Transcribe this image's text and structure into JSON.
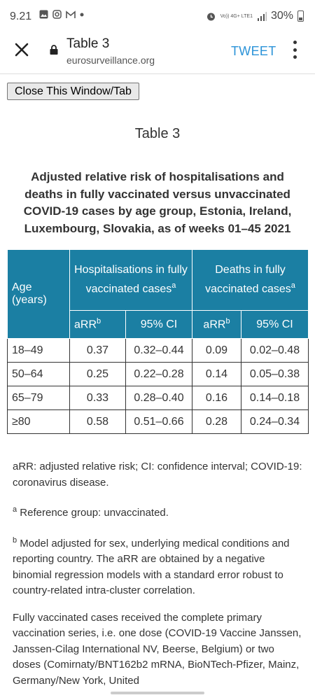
{
  "status_bar": {
    "time": "9.21",
    "left_icons": [
      "image-icon",
      "instagram-icon",
      "gmail-icon",
      "dot-icon"
    ],
    "network_label": "Vo)) 4G+ LTE1",
    "battery": "30%"
  },
  "toolbar": {
    "title": "Table 3",
    "url": "eurosurveillance.org",
    "tweet_label": "TWEET"
  },
  "page": {
    "close_button": "Close This Window/Tab",
    "table_heading": "Table 3",
    "caption": "Adjusted relative risk of hospitalisations and deaths in fully vaccinated versus unvaccinated COVID-19 cases by age group, Estonia, Ireland, Luxembourg, Slovakia, as of weeks 01–45 2021"
  },
  "table": {
    "age_header": "Age (years)",
    "group1_header": "Hospitalisations in fully vaccinated cases",
    "group2_header": "Deaths in fully vaccinated cases",
    "sup_a": "a",
    "sup_b": "b",
    "sub_arr": "aRR",
    "sub_ci": "95% CI",
    "rows": [
      {
        "age": "18–49",
        "h_arr": "0.37",
        "h_ci": "0.32–0.44",
        "d_arr": "0.09",
        "d_ci": "0.02–0.48"
      },
      {
        "age": "50–64",
        "h_arr": "0.25",
        "h_ci": "0.22–0.28",
        "d_arr": "0.14",
        "d_ci": "0.05–0.38"
      },
      {
        "age": "65–79",
        "h_arr": "0.33",
        "h_ci": "0.28–0.40",
        "d_arr": "0.16",
        "d_ci": "0.14–0.18"
      },
      {
        "age": "≥80",
        "h_arr": "0.58",
        "h_ci": "0.51–0.66",
        "d_arr": "0.28",
        "d_ci": "0.24–0.34"
      }
    ]
  },
  "notes": {
    "abbrev": "aRR: adjusted relative risk; CI: confidence interval; COVID-19: coronavirus disease.",
    "note_a_mark": "a",
    "note_a": " Reference group: unvaccinated.",
    "note_b_mark": "b",
    "note_b": " Model adjusted for sex, underlying medical conditions and reporting country. The aRR are obtained by a negative binomial regression models with a standard error robust to country-related intra-cluster correlation.",
    "fully_vaccinated": "Fully vaccinated cases received the complete primary vaccination series, i.e. one dose (COVID-19 Vaccine Janssen, Janssen-Cilag International NV, Beerse, Belgium) or two doses (Comirnaty/BNT162b2 mRNA, BioNTech-Pfizer, Mainz, Germany/New York, United"
  },
  "colors": {
    "table_header": "#1b7fa3",
    "tweet": "#2b93d8"
  }
}
